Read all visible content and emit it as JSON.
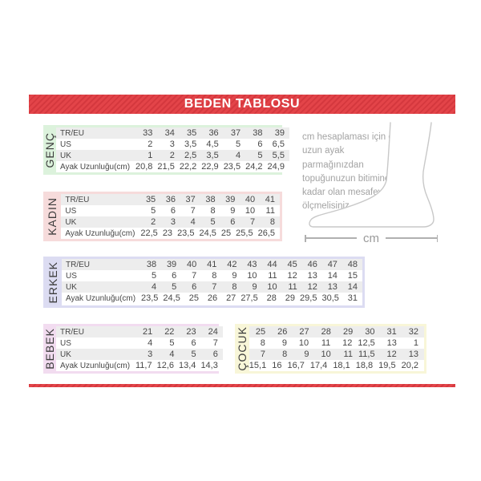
{
  "title": "BEDEN TABLOSU",
  "colors": {
    "banner_red": "#e23c42",
    "genc": "#dcf2dc",
    "kadin": "#f6dbdb",
    "erkek": "#dcdcf2",
    "bebek": "#f2dcf0",
    "cocuk": "#f8f6d8",
    "row_stripe": "#ededed",
    "note_gray": "#a3a3a3"
  },
  "sections": {
    "genc": {
      "label": "GENÇ",
      "rows": [
        {
          "label": "TR/EU",
          "values": [
            "33",
            "34",
            "35",
            "36",
            "37",
            "38",
            "39"
          ]
        },
        {
          "label": "US",
          "values": [
            "2",
            "3",
            "3,5",
            "4,5",
            "5",
            "6",
            "6,5"
          ]
        },
        {
          "label": "UK",
          "values": [
            "1",
            "2",
            "2,5",
            "3,5",
            "4",
            "5",
            "5,5"
          ]
        },
        {
          "label": "Ayak Uzunluğu(cm)",
          "values": [
            "20,8",
            "21,5",
            "22,2",
            "22,9",
            "23,5",
            "24,2",
            "24,9"
          ]
        }
      ]
    },
    "kadin": {
      "label": "KADIN",
      "rows": [
        {
          "label": "TR/EU",
          "values": [
            "35",
            "36",
            "37",
            "38",
            "39",
            "40",
            "41"
          ]
        },
        {
          "label": "US",
          "values": [
            "5",
            "6",
            "7",
            "8",
            "9",
            "10",
            "11"
          ]
        },
        {
          "label": "UK",
          "values": [
            "2",
            "3",
            "4",
            "5",
            "6",
            "7",
            "8"
          ]
        },
        {
          "label": "Ayak Uzunluğu(cm)",
          "values": [
            "22,5",
            "23",
            "23,5",
            "24,5",
            "25",
            "25,5",
            "26,5"
          ]
        }
      ]
    },
    "erkek": {
      "label": "ERKEK",
      "rows": [
        {
          "label": "TR/EU",
          "values": [
            "38",
            "39",
            "40",
            "41",
            "42",
            "43",
            "44",
            "45",
            "46",
            "47",
            "48"
          ]
        },
        {
          "label": "US",
          "values": [
            "5",
            "6",
            "7",
            "8",
            "9",
            "10",
            "11",
            "12",
            "13",
            "14",
            "15"
          ]
        },
        {
          "label": "UK",
          "values": [
            "4",
            "5",
            "6",
            "7",
            "8",
            "9",
            "10",
            "11",
            "12",
            "13",
            "14"
          ]
        },
        {
          "label": "Ayak Uzunluğu(cm)",
          "values": [
            "23,5",
            "24,5",
            "25",
            "26",
            "27",
            "27,5",
            "28",
            "29",
            "29,5",
            "30,5",
            "31"
          ]
        }
      ]
    },
    "bebek": {
      "label": "BEBEK",
      "rows": [
        {
          "label": "TR/EU",
          "values": [
            "21",
            "22",
            "23",
            "24"
          ]
        },
        {
          "label": "US",
          "values": [
            "4",
            "5",
            "6",
            "7"
          ]
        },
        {
          "label": "UK",
          "values": [
            "3",
            "4",
            "5",
            "6"
          ]
        },
        {
          "label": "Ayak Uzunluğu(cm)",
          "values": [
            "11,7",
            "12,6",
            "13,4",
            "14,3"
          ]
        }
      ]
    },
    "cocuk": {
      "label": "ÇOCUK",
      "rows": [
        {
          "values": [
            "25",
            "26",
            "27",
            "28",
            "29",
            "30",
            "31",
            "32"
          ]
        },
        {
          "values": [
            "8",
            "9",
            "10",
            "11",
            "12",
            "12,5",
            "13",
            "1"
          ]
        },
        {
          "values": [
            "7",
            "8",
            "9",
            "10",
            "11",
            "11,5",
            "12",
            "13"
          ]
        },
        {
          "values": [
            "15,1",
            "16",
            "16,7",
            "17,4",
            "18,1",
            "18,8",
            "19,5",
            "20,2"
          ]
        }
      ]
    }
  },
  "note": {
    "text": "cm hesaplaması için en uzun ayak parmağınızdan topuğunuzun bitimine kadar olan mesafeyi ölçmelisiniz."
  },
  "foot_diagram": {
    "unit_label": "cm"
  }
}
